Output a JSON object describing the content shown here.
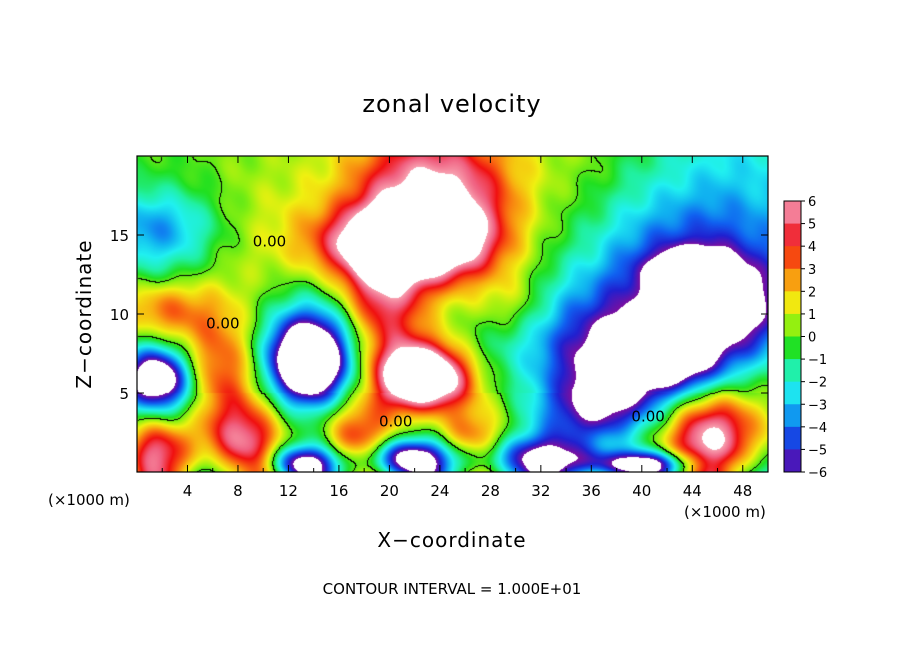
{
  "chart_data": {
    "type": "heatmap",
    "title": "zonal velocity",
    "xlabel": "X−coordinate",
    "ylabel": "Z−coordinate",
    "x_unit_left": "(×1000 m)",
    "x_unit_right": "(×1000 m)",
    "xlim": [
      0,
      50
    ],
    "ylim": [
      0,
      20
    ],
    "x_ticks": [
      4,
      8,
      12,
      16,
      20,
      24,
      28,
      32,
      36,
      40,
      44,
      48
    ],
    "x_tick_labels": [
      "4",
      "8",
      "12",
      "16",
      "20",
      "24",
      "28",
      "32",
      "36",
      "40",
      "44",
      "48"
    ],
    "y_ticks": [
      5,
      10,
      15
    ],
    "y_tick_labels": [
      "5",
      "10",
      "15"
    ],
    "colorbar": {
      "min": -6,
      "max": 6,
      "ticks": [
        6,
        5,
        4,
        3,
        2,
        1,
        0,
        -1,
        -2,
        -3,
        -4,
        -5,
        -6
      ],
      "tick_labels": [
        "6",
        "5",
        "4",
        "3",
        "2",
        "1",
        "0",
        "−1",
        "−2",
        "−3",
        "−4",
        "−5",
        "−6"
      ],
      "colors": [
        "#7a0fa0",
        "#2020d0",
        "#1060f0",
        "#10b0f0",
        "#20f0f0",
        "#20f0a0",
        "#20e020",
        "#90f010",
        "#f0f010",
        "#f8b010",
        "#f86010",
        "#f01010",
        "#f06080",
        "#f8a0b0"
      ],
      "out_of_range_color": "#ffffff"
    },
    "contour_labels": [
      {
        "text": "0.00",
        "x": 10.5,
        "z": 14.6
      },
      {
        "text": "0.00",
        "x": 6.8,
        "z": 9.4
      },
      {
        "text": "0.00",
        "x": 20.5,
        "z": 3.2
      },
      {
        "text": "0.00",
        "x": 40.5,
        "z": 3.5
      }
    ],
    "contour_interval_text": "CONTOUR INTERVAL = 1.000E+01",
    "features": [
      {
        "x": 1.2,
        "z": 15.5,
        "value": -2.5,
        "sx": 4.0,
        "sz": 1.6
      },
      {
        "x": 2.0,
        "z": 10.3,
        "value": 3.8,
        "sx": 2.6,
        "sz": 1.4
      },
      {
        "x": 10.0,
        "z": 16.0,
        "value": 0.6,
        "sx": 4.0,
        "sz": 2.0
      },
      {
        "x": 12.0,
        "z": 12.0,
        "value": 0.4,
        "sx": 4.0,
        "sz": 2.0
      },
      {
        "x": 22.0,
        "z": 16.8,
        "value": 2.5,
        "sx": 4.0,
        "sz": 3.5
      },
      {
        "x": 23.5,
        "z": 18.5,
        "value": 2.6,
        "sx": 3.5,
        "sz": 2.0
      },
      {
        "x": 27.5,
        "z": 16.0,
        "value": 1.5,
        "sx": 3.0,
        "sz": 3.5
      },
      {
        "x": 20.0,
        "z": 14.5,
        "value": 5.8,
        "sx": 4.0,
        "sz": 1.5
      },
      {
        "x": 24.0,
        "z": 14.8,
        "value": 4.0,
        "sx": 3.0,
        "sz": 1.8
      },
      {
        "x": 19.5,
        "z": 11.0,
        "value": 4.8,
        "sx": 2.3,
        "sz": 3.5
      },
      {
        "x": 22.5,
        "z": 6.5,
        "value": 6.6,
        "sx": 2.5,
        "sz": 1.4
      },
      {
        "x": 23.0,
        "z": 5.5,
        "value": 5.0,
        "sx": 2.5,
        "sz": 1.2
      },
      {
        "x": 30.0,
        "z": 10.5,
        "value": 1.6,
        "sx": 2.0,
        "sz": 1.5
      },
      {
        "x": 14.0,
        "z": 7.0,
        "value": -5.0,
        "sx": 3.3,
        "sz": 3.0
      },
      {
        "x": 13.5,
        "z": 7.0,
        "value": -7.5,
        "sx": 1.9,
        "sz": 1.8
      },
      {
        "x": 6.5,
        "z": 5.5,
        "value": 5.0,
        "sx": 2.4,
        "sz": 3.4
      },
      {
        "x": 1.5,
        "z": 6.0,
        "value": -7.0,
        "sx": 1.8,
        "sz": 1.3
      },
      {
        "x": 3.0,
        "z": 4.8,
        "value": -3.0,
        "sx": 2.8,
        "sz": 1.8
      },
      {
        "x": 15.0,
        "z": 4.0,
        "value": 2.0,
        "sx": 4.0,
        "sz": 1.4
      },
      {
        "x": 42.5,
        "z": 12.0,
        "value": -4.3,
        "sx": 6.5,
        "sz": 4.0
      },
      {
        "x": 44.0,
        "z": 12.5,
        "value": -6.5,
        "sx": 2.0,
        "sz": 1.0
      },
      {
        "x": 36.0,
        "z": 8.5,
        "value": -3.0,
        "sx": 6.0,
        "sz": 2.5
      },
      {
        "x": 36.5,
        "z": 3.6,
        "value": -6.5,
        "sx": 3.0,
        "sz": 2.5
      },
      {
        "x": 42.0,
        "z": 7.2,
        "value": -7.0,
        "sx": 3.2,
        "sz": 1.6
      },
      {
        "x": 46.0,
        "z": 2.5,
        "value": 5.5,
        "sx": 3.0,
        "sz": 2.0
      },
      {
        "x": 39.0,
        "z": 1.5,
        "value": 3.0,
        "sx": 3.5,
        "sz": 1.2
      },
      {
        "x": 48.5,
        "z": 10.0,
        "value": -3.0,
        "sx": 2.5,
        "sz": 2.0
      },
      {
        "x": 21.0,
        "z": 0.8,
        "value": -7.0,
        "sx": 2.5,
        "sz": 0.9
      },
      {
        "x": 13.0,
        "z": 0.5,
        "value": -6.5,
        "sx": 2.0,
        "sz": 0.8
      },
      {
        "x": 31.0,
        "z": 0.8,
        "value": -5.0,
        "sx": 5.0,
        "sz": 1.0
      },
      {
        "x": 1.5,
        "z": 1.5,
        "value": 4.0,
        "sx": 2.0,
        "sz": 1.5
      },
      {
        "x": 8.5,
        "z": 1.8,
        "value": 3.5,
        "sx": 2.0,
        "sz": 1.5
      },
      {
        "x": 17.0,
        "z": 1.8,
        "value": 4.0,
        "sx": 2.0,
        "sz": 1.5
      },
      {
        "x": 26.0,
        "z": 1.8,
        "value": 3.5,
        "sx": 2.0,
        "sz": 1.5
      },
      {
        "x": 40.0,
        "z": 0.5,
        "value": -6.0,
        "sx": 3.0,
        "sz": 0.6
      }
    ]
  }
}
